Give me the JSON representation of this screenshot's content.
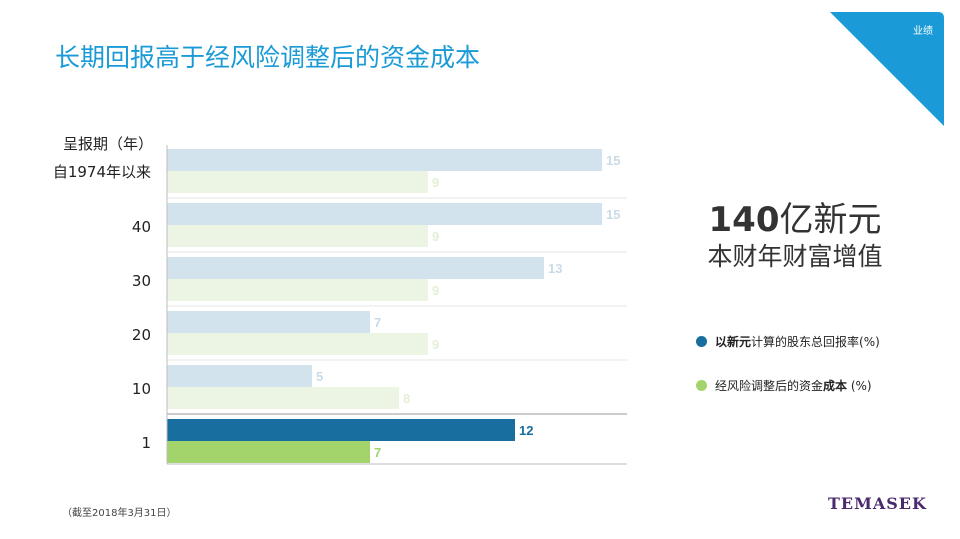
{
  "title": "长期回报高于经风险调整后的资金成本",
  "corner_tag": "业绩",
  "highlight": {
    "value": "140",
    "unit": "亿新元",
    "subtitle": "本财年财富增值"
  },
  "legend": {
    "shareholder": {
      "bold": "以新元",
      "rest": "计算的股东总回报率(%)"
    },
    "cost": {
      "rest": "经风险调整后的资金",
      "bold": "成本",
      "tail": " (%)"
    }
  },
  "footnote": "（截至2018年3月31日）",
  "logo": "TEMASEK",
  "colors": {
    "return_light": "#d2e3ed",
    "cost_light": "#ecf5e4",
    "return_label_light": "#c9dbe6",
    "cost_label_light": "#e3efd8",
    "return_dark": "#186e9e",
    "cost_dark": "#a3d46c",
    "accent": "#1a9ad6"
  },
  "chart_data": {
    "type": "bar",
    "orientation": "horizontal",
    "axis_title": [
      "呈报期（年）",
      "自1974年以来"
    ],
    "categories": [
      "自1974年以来",
      "40",
      "30",
      "20",
      "10",
      "1"
    ],
    "series": [
      {
        "name": "以新元计算的股东总回报率(%)",
        "values": [
          15,
          15,
          13,
          7,
          5,
          12
        ]
      },
      {
        "name": "经风险调整后的资金成本 (%)",
        "values": [
          9,
          9,
          9,
          9,
          8,
          7
        ]
      }
    ],
    "highlighted_category": "1",
    "xlim": [
      0,
      17
    ],
    "grid": false,
    "legend_position": "right"
  }
}
